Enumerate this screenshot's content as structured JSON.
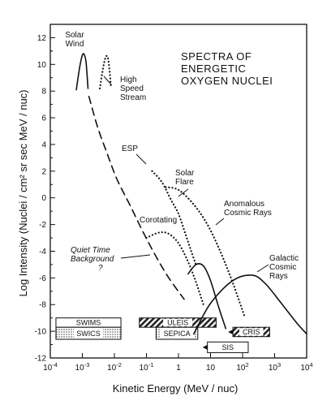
{
  "chart_data": {
    "type": "line",
    "title": [
      "SPECTRA OF",
      "ENERGETIC",
      "OXYGEN NUCLEI"
    ],
    "xlabel": "Kinetic Energy (MeV / nuc)",
    "ylabel": "Log Intensity (Nuclei / cm² sr sec MeV / nuc)",
    "x_scale": "log",
    "xlim": [
      0.0001,
      10000
    ],
    "ylim": [
      -12,
      13
    ],
    "x_ticks": [
      {
        "value": 0.0001,
        "base": "10",
        "exp": "-4"
      },
      {
        "value": 0.001,
        "base": "10",
        "exp": "-3"
      },
      {
        "value": 0.01,
        "base": "10",
        "exp": "-2"
      },
      {
        "value": 0.1,
        "base": "10",
        "exp": "-1"
      },
      {
        "value": 1,
        "base": "1",
        "exp": ""
      },
      {
        "value": 10,
        "base": "10",
        "exp": ""
      },
      {
        "value": 100,
        "base": "10",
        "exp": "2"
      },
      {
        "value": 1000,
        "base": "10",
        "exp": "3"
      },
      {
        "value": 10000,
        "base": "10",
        "exp": "4"
      }
    ],
    "y_ticks": [
      12,
      10,
      8,
      6,
      4,
      2,
      0,
      -2,
      -4,
      -6,
      -8,
      -10,
      -12
    ],
    "y_tick_labels": [
      "12",
      "10",
      "8",
      "6",
      "4",
      "2",
      "0",
      "-2",
      "-4",
      "-6",
      "-8",
      "-10",
      "-12"
    ],
    "series": [
      {
        "name": "Solar Wind",
        "style": "solid",
        "points": [
          [
            0.00065,
            8.1
          ],
          [
            0.0008,
            9.6
          ],
          [
            0.00095,
            10.5
          ],
          [
            0.0011,
            10.8
          ],
          [
            0.0013,
            10.2
          ],
          [
            0.0015,
            8.2
          ]
        ]
      },
      {
        "name": "High Speed Stream",
        "style": "dotted",
        "points": [
          [
            0.0035,
            8.2
          ],
          [
            0.0045,
            9.8
          ],
          [
            0.0055,
            10.6
          ],
          [
            0.0065,
            10.3
          ],
          [
            0.0078,
            8.4
          ]
        ]
      },
      {
        "name": "Quiet Time Background",
        "style": "dashed",
        "points": [
          [
            0.0016,
            7.6
          ],
          [
            0.003,
            5.3
          ],
          [
            0.006,
            3.3
          ],
          [
            0.012,
            1.4
          ],
          [
            0.03,
            -0.5
          ],
          [
            0.08,
            -2.6
          ],
          [
            0.2,
            -4.4
          ],
          [
            0.5,
            -6.0
          ],
          [
            1.5,
            -7.6
          ]
        ]
      },
      {
        "name": "ESP",
        "style": "dotted",
        "points": [
          [
            0.15,
            2.0
          ],
          [
            0.3,
            1.2
          ],
          [
            0.6,
            -0.2
          ],
          [
            1.0,
            -1.2
          ],
          [
            1.7,
            -2.8
          ],
          [
            2.5,
            -4.0
          ],
          [
            3.5,
            -5.0
          ]
        ]
      },
      {
        "name": "Corotating",
        "style": "dotted",
        "points": [
          [
            0.1,
            -3.0
          ],
          [
            0.25,
            -2.6
          ],
          [
            0.5,
            -2.7
          ],
          [
            1.0,
            -3.4
          ],
          [
            2.0,
            -4.8
          ],
          [
            3.5,
            -6.3
          ],
          [
            6.0,
            -8.0
          ]
        ]
      },
      {
        "name": "Solar Flare",
        "style": "dotted",
        "points": [
          [
            0.4,
            0.8
          ],
          [
            1.0,
            0.6
          ],
          [
            3.0,
            -0.5
          ],
          [
            8.0,
            -2.0
          ],
          [
            20.0,
            -4.0
          ],
          [
            50.0,
            -6.4
          ],
          [
            120.0,
            -9.0
          ]
        ]
      },
      {
        "name": "Anomalous Cosmic Rays",
        "style": "solid",
        "points": [
          [
            2.0,
            -5.7
          ],
          [
            3.5,
            -5.0
          ],
          [
            6.0,
            -5.1
          ],
          [
            10.0,
            -6.2
          ],
          [
            18.0,
            -8.2
          ],
          [
            30.0,
            -9.8
          ]
        ]
      },
      {
        "name": "Galactic Cosmic Rays",
        "style": "solid",
        "points": [
          [
            3.0,
            -10.2
          ],
          [
            10.0,
            -7.9
          ],
          [
            50.0,
            -6.2
          ],
          [
            200.0,
            -5.8
          ],
          [
            500.0,
            -6.4
          ],
          [
            1500.0,
            -7.8
          ],
          [
            5000.0,
            -9.4
          ],
          [
            10000.0,
            -10.2
          ]
        ]
      }
    ],
    "annotations": [
      {
        "lines": [
          "Solar",
          "Wind"
        ],
        "style": "normal"
      },
      {
        "lines": [
          "High",
          "Speed",
          "Stream"
        ],
        "style": "normal"
      },
      {
        "lines": [
          "ESP"
        ],
        "style": "normal"
      },
      {
        "lines": [
          "Solar",
          "Flare"
        ],
        "style": "normal"
      },
      {
        "lines": [
          "Anomalous",
          "Cosmic Rays"
        ],
        "style": "normal"
      },
      {
        "lines": [
          "Corotating"
        ],
        "style": "normal"
      },
      {
        "lines": [
          "Quiet Time",
          "Background",
          "?"
        ],
        "style": "italic"
      },
      {
        "lines": [
          "Galactic",
          "Cosmic",
          "Rays"
        ],
        "style": "normal"
      }
    ],
    "instruments": [
      {
        "name": "SWIMS",
        "xrange": [
          0.00015,
          0.016
        ],
        "yrange": [
          -9.7,
          -9.0
        ],
        "fill": "white"
      },
      {
        "name": "SWICS",
        "xrange": [
          0.00015,
          0.016
        ],
        "yrange": [
          -10.6,
          -9.7
        ],
        "fill": "dotted"
      },
      {
        "name": "ULEIS",
        "xrange": [
          0.06,
          15
        ],
        "yrange": [
          -9.7,
          -9.0
        ],
        "fill": "striped"
      },
      {
        "name": "SEPICA",
        "xrange": [
          0.2,
          4
        ],
        "yrange": [
          -10.6,
          -9.7
        ],
        "fill": "dotted"
      },
      {
        "name": "SIS",
        "xrange": [
          8,
          150
        ],
        "yrange": [
          -11.6,
          -10.8
        ],
        "fill": "white"
      },
      {
        "name": "CRIS",
        "xrange": [
          50,
          700
        ],
        "yrange": [
          -10.4,
          -9.7
        ],
        "fill": "striped"
      }
    ],
    "grid": false
  }
}
